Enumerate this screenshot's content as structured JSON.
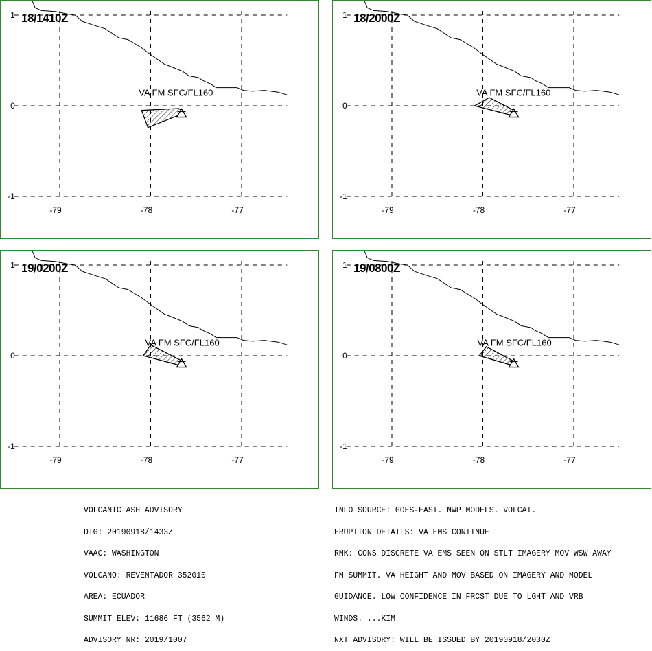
{
  "colors": {
    "border": "#2e8b2e",
    "grid": "#000000",
    "coast": "#000000",
    "text": "#000000"
  },
  "map": {
    "lon_range": [
      -79.5,
      -76.5
    ],
    "lat_range": [
      -1.0,
      1.0
    ],
    "lon_ticks": [
      {
        "value": -79,
        "label": "-79"
      },
      {
        "value": -78,
        "label": "-78"
      },
      {
        "value": -77,
        "label": "-77"
      }
    ],
    "lat_ticks": [
      {
        "value": 1,
        "label": "1"
      },
      {
        "value": 0,
        "label": "0"
      },
      {
        "value": -1,
        "label": "-1"
      }
    ],
    "coastline": [
      [
        -79.3,
        1.15
      ],
      [
        -79.27,
        1.08
      ],
      [
        -79.2,
        1.05
      ],
      [
        -79.05,
        1.04
      ],
      [
        -78.9,
        1.01
      ],
      [
        -78.83,
        1.0
      ],
      [
        -78.75,
        0.93
      ],
      [
        -78.6,
        0.88
      ],
      [
        -78.5,
        0.85
      ],
      [
        -78.35,
        0.75
      ],
      [
        -78.25,
        0.73
      ],
      [
        -78.1,
        0.64
      ],
      [
        -77.98,
        0.55
      ],
      [
        -77.85,
        0.46
      ],
      [
        -77.8,
        0.44
      ],
      [
        -77.65,
        0.38
      ],
      [
        -77.58,
        0.33
      ],
      [
        -77.47,
        0.31
      ],
      [
        -77.43,
        0.28
      ],
      [
        -77.34,
        0.24
      ],
      [
        -77.28,
        0.2
      ],
      [
        -77.05,
        0.2
      ],
      [
        -76.98,
        0.17
      ],
      [
        -76.88,
        0.16
      ],
      [
        -76.75,
        0.17
      ],
      [
        -76.6,
        0.15
      ],
      [
        -76.5,
        0.12
      ]
    ],
    "volcano": {
      "lon": -77.66,
      "lat": -0.08,
      "name": "REVENTADOR"
    }
  },
  "panels": [
    {
      "time": "18/1410Z",
      "label": "VA FM SFC/FL160",
      "label_pos": {
        "lon": -78.13,
        "lat": 0.11
      },
      "polygon": [
        [
          -77.63,
          -0.08
        ],
        [
          -77.69,
          -0.03
        ],
        [
          -78.1,
          -0.05
        ],
        [
          -78.03,
          -0.24
        ]
      ]
    },
    {
      "time": "18/2000Z",
      "label": "VA FM SFC/FL160",
      "label_pos": {
        "lon": -78.07,
        "lat": 0.11
      },
      "polygon": [
        [
          -77.63,
          -0.12
        ],
        [
          -77.66,
          -0.05
        ],
        [
          -77.93,
          0.09
        ],
        [
          -78.09,
          0.0
        ]
      ]
    },
    {
      "time": "19/0200Z",
      "label": "VA FM SFC/FL160",
      "label_pos": {
        "lon": -78.06,
        "lat": 0.11
      },
      "polygon": [
        [
          -77.63,
          -0.12
        ],
        [
          -77.67,
          -0.05
        ],
        [
          -78.0,
          0.12
        ],
        [
          -78.08,
          0.0
        ]
      ]
    },
    {
      "time": "19/0800Z",
      "label": "VA FM SFC/FL160",
      "label_pos": {
        "lon": -78.06,
        "lat": 0.11
      },
      "polygon": [
        [
          -77.63,
          -0.12
        ],
        [
          -77.68,
          -0.05
        ],
        [
          -77.96,
          0.1
        ],
        [
          -78.04,
          0.0
        ]
      ]
    }
  ],
  "advisory_left": [
    "VOLCANIC ASH ADVISORY",
    "DTG: 20190918/1433Z",
    "VAAC: WASHINGTON",
    "VOLCANO: REVENTADOR 352010",
    "AREA: ECUADOR",
    "SUMMIT ELEV: 11686 FT (3562 M)",
    "ADVISORY NR: 2019/1007"
  ],
  "advisory_right": [
    "INFO SOURCE: GOES-EAST. NWP MODELS. VOLCAT.",
    "ERUPTION DETAILS: VA EMS CONTINUE",
    "RMK: CONS DISCRETE VA EMS SEEN ON STLT IMAGERY MOV WSW AWAY",
    "FM SUMMIT. VA HEIGHT AND MOV BASED ON IMAGERY AND MODEL",
    "GUIDANCE. LOW CONFIDENCE IN FRCST DUE TO LGHT AND VRB",
    "WINDS. ...KIM",
    "NXT ADVISORY: WILL BE ISSUED BY 20190918/2030Z"
  ]
}
